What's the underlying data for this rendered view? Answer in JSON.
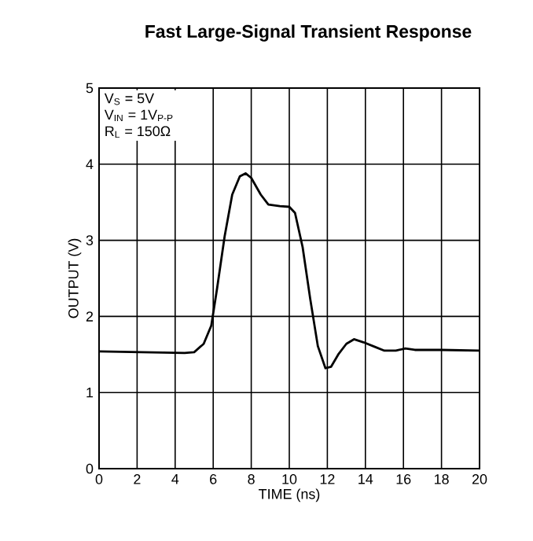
{
  "chart_data": {
    "type": "line",
    "title": "Fast Large-Signal Transient Response",
    "xlabel": "TIME (ns)",
    "ylabel": "OUTPUT (V)",
    "annotations": [
      "V$_{S}$ = 5V",
      "V$_{IN}$ = 1V$_{P-P}$",
      "R$_{L}$ = 150Ω"
    ],
    "x": [
      0,
      4.5,
      5.0,
      5.5,
      5.9,
      6.2,
      6.6,
      7.0,
      7.4,
      7.7,
      8.0,
      8.5,
      8.9,
      9.5,
      10.0,
      10.3,
      10.7,
      11.1,
      11.5,
      11.9,
      12.2,
      12.6,
      13.0,
      13.4,
      13.9,
      14.5,
      15.0,
      15.6,
      16.1,
      16.6,
      18,
      20
    ],
    "series": [
      {
        "color": "#000000",
        "values": [
          1.54,
          1.52,
          1.53,
          1.64,
          1.88,
          2.36,
          3.05,
          3.6,
          3.84,
          3.88,
          3.82,
          3.6,
          3.47,
          3.45,
          3.44,
          3.36,
          2.91,
          2.23,
          1.61,
          1.32,
          1.34,
          1.51,
          1.64,
          1.7,
          1.66,
          1.6,
          1.55,
          1.55,
          1.58,
          1.56,
          1.56,
          1.55
        ]
      }
    ],
    "xlim": [
      0,
      20
    ],
    "ylim": [
      0,
      5
    ],
    "xticks": [
      0,
      2,
      4,
      6,
      8,
      10,
      12,
      14,
      16,
      18,
      20
    ],
    "yticks": [
      0,
      1,
      2,
      3,
      4,
      5
    ],
    "grid": true,
    "marker": "none",
    "line_style": "solid"
  }
}
